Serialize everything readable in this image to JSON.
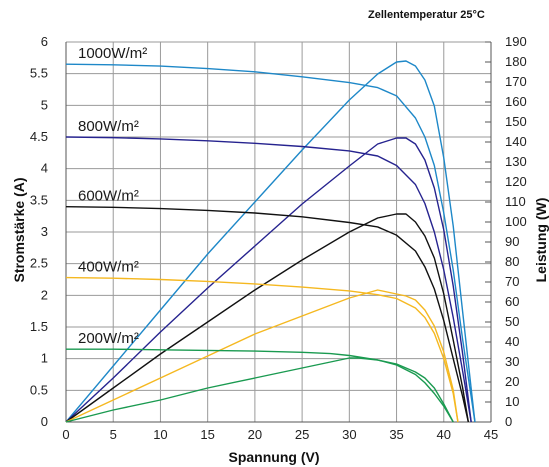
{
  "chart_data": {
    "type": "line",
    "title": "",
    "subtitle": "Zellentemperatur  25°C",
    "xlabel": "Spannung (V)",
    "ylabel_left": "Stromstärke (A)",
    "ylabel_right": "Leistung (W)",
    "xlim": [
      0,
      45
    ],
    "ylim_left": [
      0,
      6
    ],
    "ylim_right": [
      0,
      190
    ],
    "x_ticks": [
      "0",
      "5",
      "10",
      "15",
      "20",
      "25",
      "30",
      "35",
      "40",
      "45"
    ],
    "y_left_ticks": [
      "0",
      "0.5",
      "1",
      "1.5",
      "2",
      "2.5",
      "3",
      "3.5",
      "4",
      "4.5",
      "5",
      "5.5",
      "6"
    ],
    "y_right_ticks": [
      "0",
      "10",
      "20",
      "30",
      "40",
      "50",
      "60",
      "70",
      "80",
      "90",
      "100",
      "110",
      "120",
      "130",
      "140",
      "150",
      "160",
      "170",
      "180",
      "190"
    ],
    "grid": true,
    "series": [
      {
        "name": "1000W/m²",
        "color": "#1e88c8",
        "current_axis": "left",
        "current": [
          [
            0,
            5.65
          ],
          [
            5,
            5.64
          ],
          [
            10,
            5.62
          ],
          [
            15,
            5.58
          ],
          [
            20,
            5.53
          ],
          [
            25,
            5.45
          ],
          [
            30,
            5.36
          ],
          [
            33,
            5.28
          ],
          [
            35,
            5.15
          ],
          [
            37,
            4.8
          ],
          [
            38,
            4.5
          ],
          [
            39,
            4.05
          ],
          [
            40,
            3.3
          ],
          [
            41,
            2.4
          ],
          [
            42,
            1.3
          ],
          [
            42.8,
            0.5
          ],
          [
            43.3,
            0
          ]
        ],
        "power": [
          [
            0,
            0
          ],
          [
            5,
            28
          ],
          [
            10,
            56
          ],
          [
            15,
            84
          ],
          [
            20,
            110
          ],
          [
            25,
            136
          ],
          [
            30,
            161
          ],
          [
            33,
            174
          ],
          [
            35,
            180
          ],
          [
            36,
            180.5
          ],
          [
            37,
            178
          ],
          [
            38,
            171
          ],
          [
            39,
            158
          ],
          [
            40,
            132
          ],
          [
            41,
            98
          ],
          [
            42,
            55
          ],
          [
            42.8,
            21
          ],
          [
            43.3,
            0
          ]
        ]
      },
      {
        "name": "800W/m²",
        "color": "#26238f",
        "current_axis": "left",
        "current": [
          [
            0,
            4.5
          ],
          [
            5,
            4.49
          ],
          [
            10,
            4.47
          ],
          [
            15,
            4.44
          ],
          [
            20,
            4.4
          ],
          [
            25,
            4.35
          ],
          [
            30,
            4.28
          ],
          [
            33,
            4.2
          ],
          [
            35,
            4.05
          ],
          [
            37,
            3.75
          ],
          [
            38,
            3.45
          ],
          [
            39,
            3.0
          ],
          [
            40,
            2.4
          ],
          [
            41,
            1.65
          ],
          [
            42,
            0.8
          ],
          [
            42.9,
            0
          ]
        ],
        "power": [
          [
            0,
            0
          ],
          [
            5,
            22
          ],
          [
            10,
            45
          ],
          [
            15,
            67
          ],
          [
            20,
            88
          ],
          [
            25,
            109
          ],
          [
            30,
            128
          ],
          [
            33,
            139
          ],
          [
            35,
            142
          ],
          [
            36,
            142
          ],
          [
            37,
            139
          ],
          [
            38,
            131
          ],
          [
            39,
            117
          ],
          [
            40,
            96
          ],
          [
            41,
            68
          ],
          [
            42,
            34
          ],
          [
            42.9,
            0
          ]
        ]
      },
      {
        "name": "600W/m²",
        "color": "#111111",
        "current_axis": "left",
        "current": [
          [
            0,
            3.4
          ],
          [
            5,
            3.39
          ],
          [
            10,
            3.37
          ],
          [
            15,
            3.34
          ],
          [
            20,
            3.3
          ],
          [
            25,
            3.24
          ],
          [
            30,
            3.15
          ],
          [
            33,
            3.08
          ],
          [
            35,
            2.95
          ],
          [
            37,
            2.7
          ],
          [
            38,
            2.45
          ],
          [
            39,
            2.1
          ],
          [
            40,
            1.6
          ],
          [
            41,
            1.0
          ],
          [
            42,
            0.4
          ],
          [
            42.6,
            0
          ]
        ],
        "power": [
          [
            0,
            0
          ],
          [
            5,
            17
          ],
          [
            10,
            34
          ],
          [
            15,
            50
          ],
          [
            20,
            66
          ],
          [
            25,
            81
          ],
          [
            30,
            95
          ],
          [
            33,
            102
          ],
          [
            35,
            104
          ],
          [
            36,
            104
          ],
          [
            37,
            100
          ],
          [
            38,
            93
          ],
          [
            39,
            82
          ],
          [
            40,
            64
          ],
          [
            41,
            41
          ],
          [
            42,
            17
          ],
          [
            42.6,
            0
          ]
        ]
      },
      {
        "name": "400W/m²",
        "color": "#f5b820",
        "current_axis": "left",
        "current": [
          [
            0,
            2.28
          ],
          [
            5,
            2.27
          ],
          [
            10,
            2.25
          ],
          [
            15,
            2.22
          ],
          [
            20,
            2.18
          ],
          [
            25,
            2.13
          ],
          [
            30,
            2.07
          ],
          [
            33,
            2.01
          ],
          [
            35,
            1.95
          ],
          [
            37,
            1.8
          ],
          [
            38,
            1.65
          ],
          [
            39,
            1.4
          ],
          [
            40,
            1.0
          ],
          [
            41,
            0.45
          ],
          [
            41.5,
            0
          ]
        ],
        "power": [
          [
            0,
            0
          ],
          [
            5,
            11
          ],
          [
            10,
            22
          ],
          [
            15,
            33
          ],
          [
            20,
            44
          ],
          [
            25,
            53
          ],
          [
            30,
            62
          ],
          [
            33,
            66
          ],
          [
            35,
            64
          ],
          [
            36,
            63
          ],
          [
            37,
            61
          ],
          [
            38,
            56
          ],
          [
            39,
            48
          ],
          [
            40,
            35
          ],
          [
            41,
            16
          ],
          [
            41.5,
            0
          ]
        ]
      },
      {
        "name": "200W/m²",
        "color": "#1a9a50",
        "current_axis": "left",
        "current": [
          [
            0,
            1.15
          ],
          [
            5,
            1.15
          ],
          [
            10,
            1.14
          ],
          [
            15,
            1.13
          ],
          [
            20,
            1.12
          ],
          [
            25,
            1.1
          ],
          [
            28,
            1.08
          ],
          [
            30,
            1.05
          ],
          [
            33,
            0.98
          ],
          [
            35,
            0.9
          ],
          [
            37,
            0.75
          ],
          [
            38,
            0.62
          ],
          [
            39,
            0.45
          ],
          [
            40,
            0.25
          ],
          [
            41,
            0
          ]
        ],
        "power": [
          [
            0,
            0
          ],
          [
            5,
            6
          ],
          [
            10,
            11
          ],
          [
            15,
            17
          ],
          [
            20,
            22
          ],
          [
            25,
            27
          ],
          [
            28,
            30
          ],
          [
            30,
            32
          ],
          [
            31,
            32
          ],
          [
            33,
            31
          ],
          [
            35,
            29
          ],
          [
            37,
            25
          ],
          [
            38,
            22
          ],
          [
            39,
            17
          ],
          [
            40,
            9
          ],
          [
            41,
            0
          ]
        ]
      }
    ]
  }
}
